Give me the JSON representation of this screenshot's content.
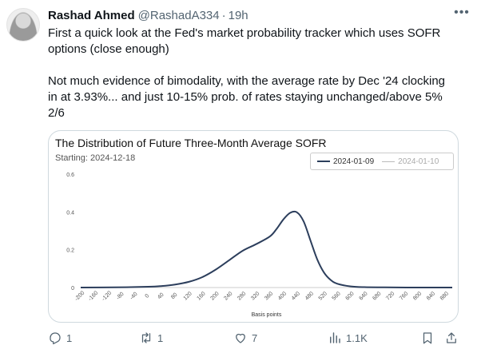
{
  "tweet": {
    "author_name": "Rashad Ahmed",
    "handle": "@RashadA334",
    "separator": "·",
    "time": "19h",
    "text_lines": [
      "First a quick look at the Fed's market probability tracker which uses SOFR",
      "options (close enough)",
      "",
      "Not much evidence of bimodality, with the average rate by Dec '24 clocking",
      "in at 3.93%... and just 10-15% prob. of rates staying unchanged/above 5%",
      "2/6"
    ]
  },
  "actions": {
    "reply_count": "1",
    "retweet_count": "1",
    "like_count": "7",
    "views_count": "1.1K"
  },
  "icons": {
    "more": "more-horizontal-icon",
    "reply": "reply-icon",
    "retweet": "retweet-icon",
    "like": "heart-icon",
    "views": "views-icon",
    "bookmark": "bookmark-icon",
    "share": "share-icon"
  },
  "colors": {
    "series_main": "#2c3e5c",
    "series_secondary": "#bbbbbb",
    "muted_text": "#536471"
  },
  "chart_data": {
    "type": "line",
    "title": "The Distribution of Future Three-Month Average SOFR",
    "subtitle": "Starting: 2024-12-18",
    "xlabel": "Basis points",
    "ylabel": "",
    "xlim": [
      -200,
      900
    ],
    "ylim": [
      0,
      0.6
    ],
    "x_ticks": [
      "-200",
      "-160",
      "-120",
      "-80",
      "-40",
      "0",
      "40",
      "80",
      "120",
      "160",
      "200",
      "240",
      "280",
      "320",
      "360",
      "400",
      "440",
      "480",
      "520",
      "560",
      "600",
      "640",
      "680",
      "720",
      "760",
      "800",
      "840",
      "880"
    ],
    "y_ticks": [
      "0",
      "0.2",
      "0.4",
      "0.6"
    ],
    "grid": false,
    "legend_position": "top-right",
    "series": [
      {
        "name": "2024-01-09",
        "x": [
          -200,
          -100,
          0,
          40,
          80,
          120,
          160,
          200,
          240,
          280,
          320,
          360,
          380,
          400,
          420,
          440,
          460,
          480,
          500,
          520,
          540,
          560,
          600,
          640,
          700,
          800,
          900
        ],
        "y": [
          0,
          0.001,
          0.004,
          0.008,
          0.016,
          0.03,
          0.055,
          0.095,
          0.145,
          0.195,
          0.23,
          0.27,
          0.31,
          0.36,
          0.395,
          0.398,
          0.35,
          0.25,
          0.15,
          0.08,
          0.04,
          0.02,
          0.006,
          0.002,
          0.001,
          0,
          0
        ]
      },
      {
        "name": "2024-01-10",
        "x": [],
        "y": []
      }
    ]
  }
}
